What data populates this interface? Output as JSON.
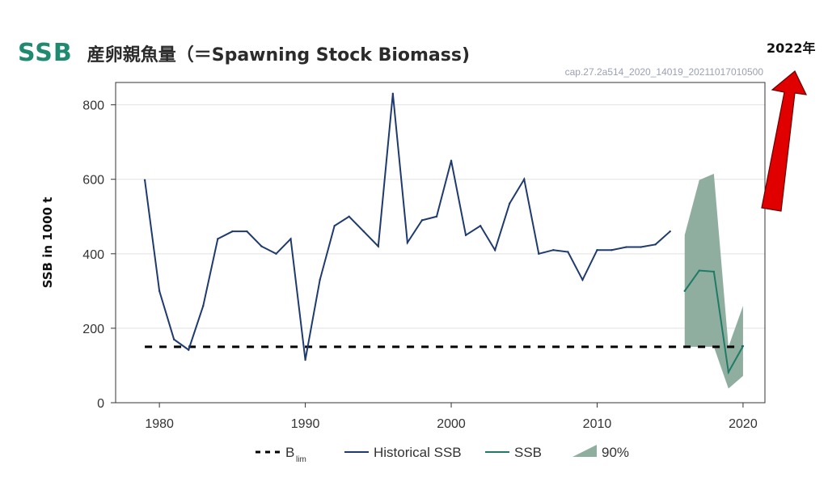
{
  "header": {
    "tag": "SSB",
    "title": "産卵親魚量（＝Spawning Stock Biomass)",
    "caption": "cap.27.2a514_2020_14019_20211017010500",
    "arrow_note": "2022年"
  },
  "colors": {
    "historical": "#1f3a6e",
    "forecast": "#1f7a66",
    "interval": "#8fae9f",
    "blim": "#000000",
    "arrow": "#e00000",
    "tag": "#1f8a6f"
  },
  "chart_data": {
    "type": "line",
    "title": "産卵親魚量（＝Spawning Stock Biomass)",
    "xlabel": "",
    "ylabel": "SSB in 1000 t",
    "xlim": [
      1977,
      2021.5
    ],
    "ylim": [
      0,
      860
    ],
    "x_ticks": [
      1980,
      1990,
      2000,
      2010,
      2020
    ],
    "y_ticks": [
      0,
      200,
      400,
      600,
      800
    ],
    "grid": "horizontal",
    "legend_position": "bottom",
    "legend": {
      "blim_main": "B",
      "blim_sub": "lim",
      "historical": "Historical SSB",
      "ssb": "SSB",
      "interval": "90%"
    },
    "blim": {
      "value": 150,
      "x": [
        1979,
        2020
      ]
    },
    "series": [
      {
        "name": "Historical SSB",
        "x": [
          1979,
          1980,
          1981,
          1982,
          1983,
          1984,
          1985,
          1986,
          1987,
          1988,
          1989,
          1990,
          1991,
          1992,
          1993,
          1994,
          1995,
          1996,
          1997,
          1998,
          1999,
          2000,
          2001,
          2002,
          2003,
          2004,
          2005,
          2006,
          2007,
          2008,
          2009,
          2010,
          2011,
          2012,
          2013,
          2014,
          2015
        ],
        "y": [
          598,
          300,
          170,
          142,
          260,
          440,
          460,
          460,
          420,
          400,
          440,
          115,
          330,
          475,
          500,
          460,
          420,
          830,
          430,
          490,
          500,
          650,
          450,
          475,
          410,
          535,
          600,
          400,
          410,
          405,
          330,
          410,
          410,
          418,
          418,
          425,
          460
        ]
      },
      {
        "name": "SSB",
        "x": [
          2016,
          2017,
          2018,
          2019,
          2020
        ],
        "y": [
          300,
          355,
          352,
          82,
          152
        ]
      }
    ],
    "interval": {
      "name": "90%",
      "x": [
        2016,
        2017,
        2018,
        2019,
        2020
      ],
      "upper": [
        450,
        598,
        615,
        150,
        260
      ],
      "lower": [
        150,
        150,
        150,
        38,
        72
      ]
    }
  }
}
